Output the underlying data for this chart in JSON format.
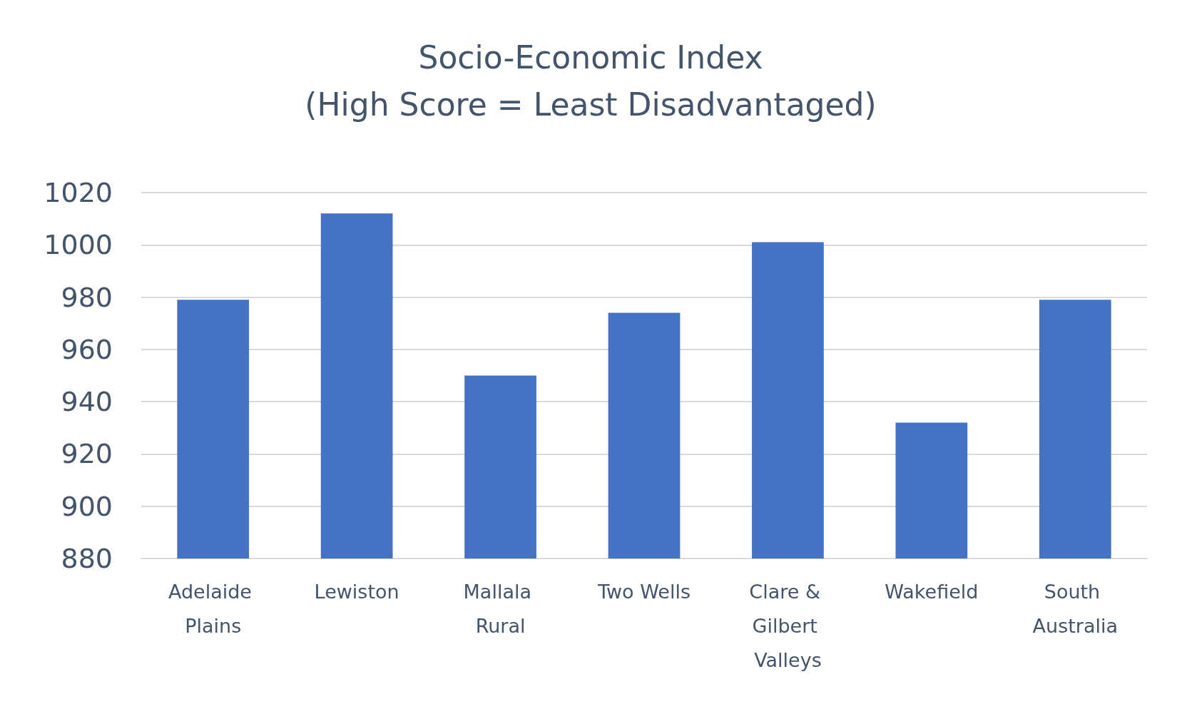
{
  "chart_data": {
    "type": "bar",
    "title": "Socio-Economic Index",
    "subtitle": "(High Score = Least Disadvantaged)",
    "categories": [
      "Adelaide Plains",
      "Lewiston",
      "Mallala Rural",
      "Two Wells",
      "Clare & Gilbert Valleys",
      "Wakefield",
      "South Australia"
    ],
    "values": [
      979,
      1012,
      950,
      974,
      1001,
      932,
      979
    ],
    "color": "#4472c4",
    "ylim": [
      880,
      1020
    ],
    "yticks": [
      880,
      900,
      920,
      940,
      960,
      980,
      1000,
      1020
    ],
    "grid": "y"
  }
}
